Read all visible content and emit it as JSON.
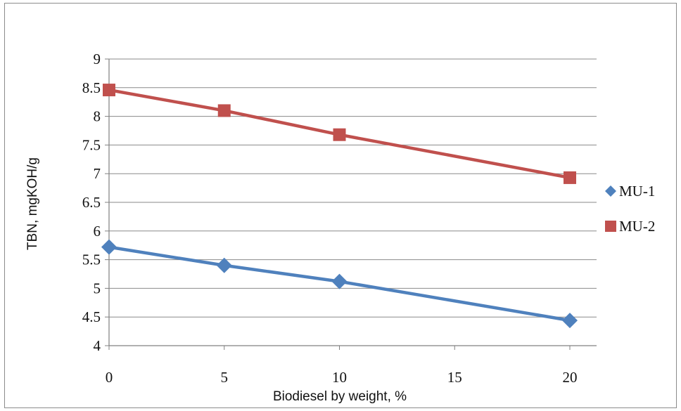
{
  "chart_data": {
    "type": "line",
    "title": "",
    "xlabel": "Biodiesel by weight, %",
    "ylabel": "TBN, mgKOH/g",
    "x_ticks": [
      0,
      5,
      10,
      15,
      20
    ],
    "y_ticks": [
      "4",
      "4.5",
      "5",
      "5.5",
      "6",
      "6.5",
      "7",
      "7.5",
      "8",
      "8.5",
      "9"
    ],
    "xlim": [
      0,
      20
    ],
    "ylim": [
      4,
      9
    ],
    "grid": "horizontal",
    "legend_position": "right",
    "series": [
      {
        "name": "MU-1",
        "color": "#4f81bd",
        "marker": "diamond",
        "x": [
          0,
          5,
          10,
          20
        ],
        "values": [
          5.72,
          5.4,
          5.12,
          4.44
        ]
      },
      {
        "name": "MU-2",
        "color": "#c0504d",
        "marker": "square",
        "x": [
          0,
          5,
          10,
          20
        ],
        "values": [
          8.46,
          8.1,
          7.68,
          6.93
        ]
      }
    ]
  }
}
